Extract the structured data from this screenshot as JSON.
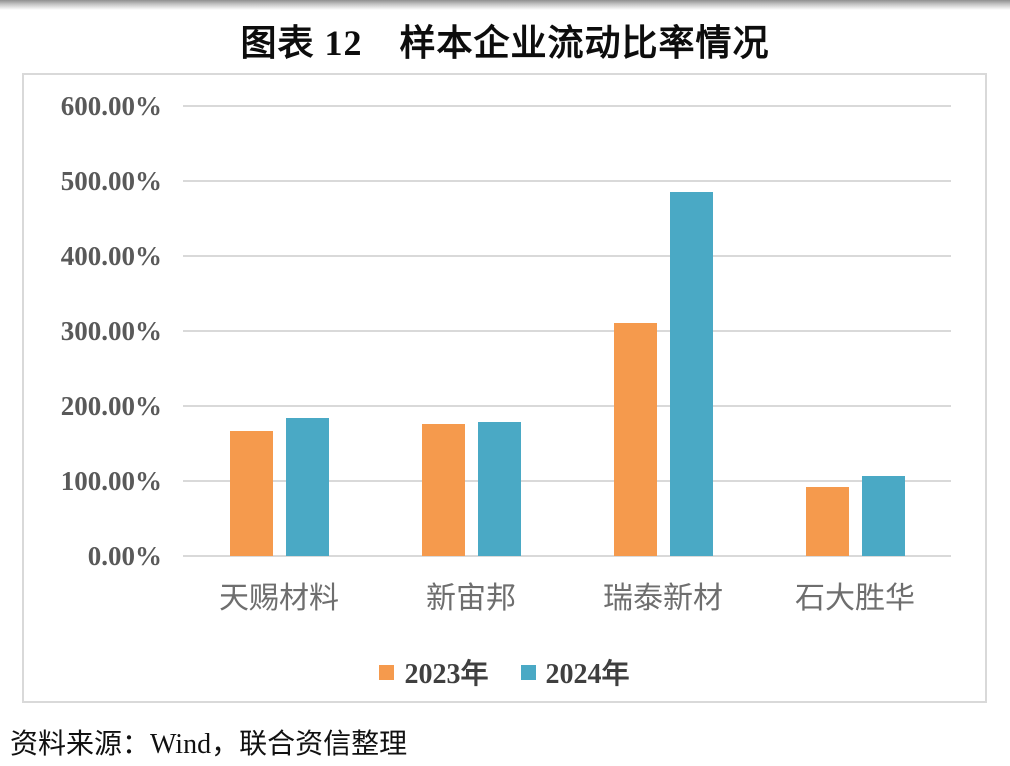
{
  "page": {
    "source_note": "资料来源：Wind，联合资信整理"
  },
  "chart_data": {
    "type": "bar",
    "title": "图表 12　样本企业流动比率情况",
    "categories": [
      "天赐材料",
      "新宙邦",
      "瑞泰新材",
      "石大胜华"
    ],
    "series": [
      {
        "name": "2023年",
        "color": "#F59A4D",
        "values": [
          167,
          176,
          310,
          92
        ]
      },
      {
        "name": "2024年",
        "color": "#4AA9C5",
        "values": [
          184,
          178,
          485,
          107
        ]
      }
    ],
    "xlabel": "",
    "ylabel": "",
    "ylim": [
      0,
      600
    ],
    "ytick_step": 100,
    "yticks": [
      "0.00%",
      "100.00%",
      "200.00%",
      "300.00%",
      "400.00%",
      "500.00%",
      "600.00%"
    ],
    "value_unit": "percent",
    "grid": true,
    "legend_position": "bottom",
    "colors": {
      "gridline": "#d9d9d9",
      "frame_border": "#d9d9d9",
      "y_tick_text": "#595959",
      "x_tick_text": "#6e6e6e",
      "legend_text": "#3f3f3f",
      "title_text": "#0d0d0d"
    }
  }
}
